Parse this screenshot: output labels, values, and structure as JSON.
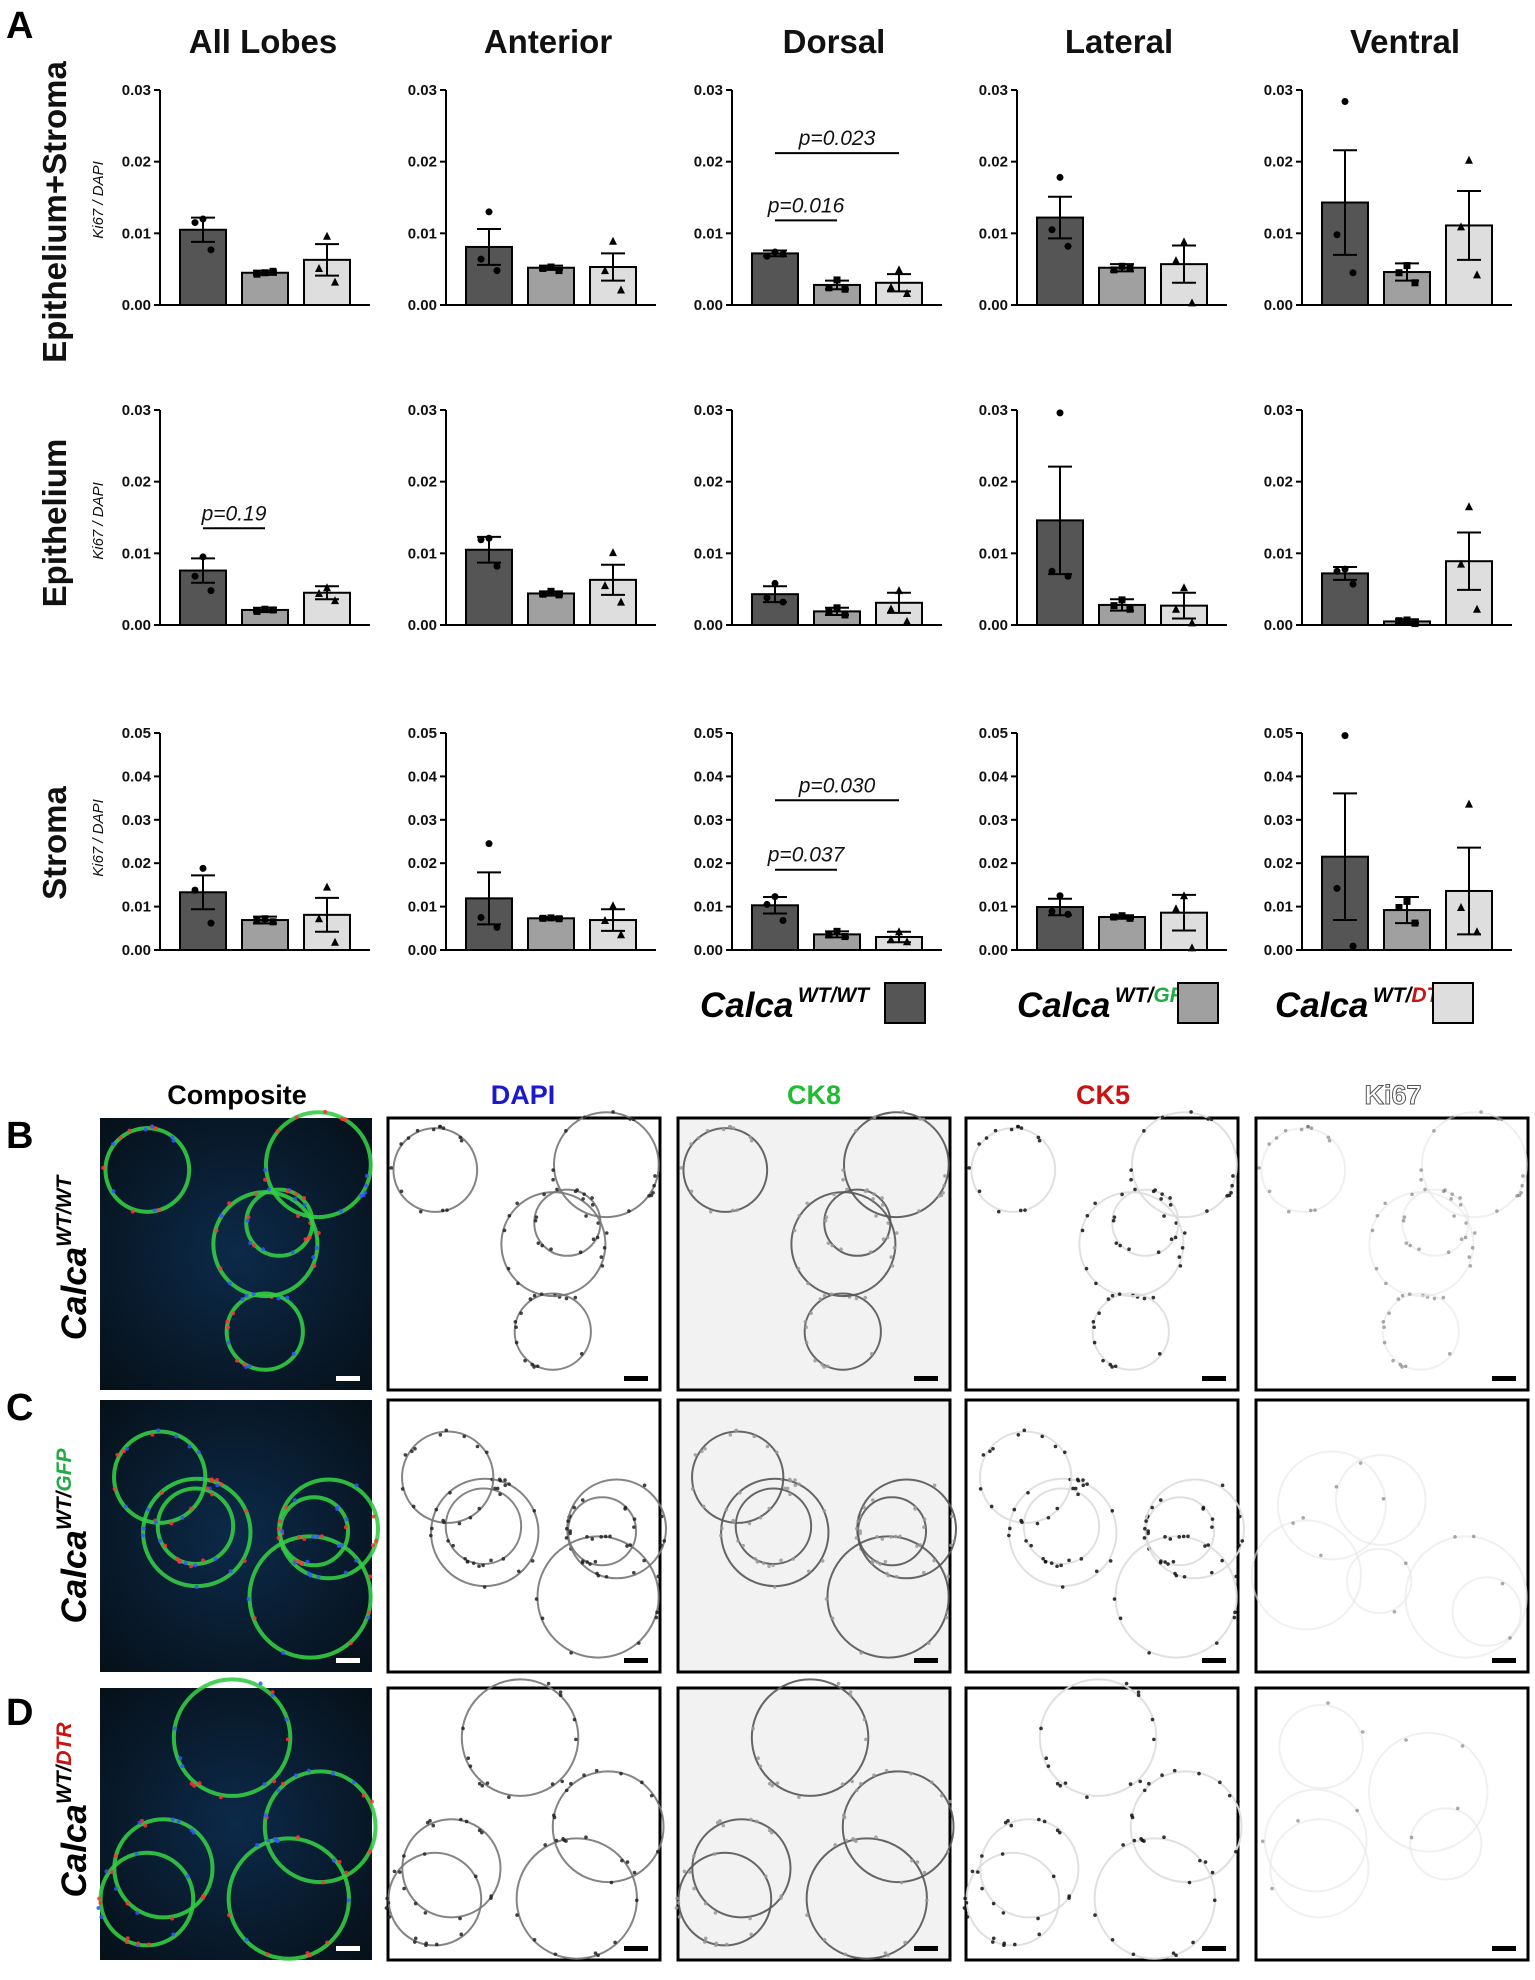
{
  "panel_labels": {
    "A": "A",
    "B": "B",
    "C": "C",
    "D": "D"
  },
  "columns": [
    "All Lobes",
    "Anterior",
    "Dorsal",
    "Lateral",
    "Ventral"
  ],
  "rows": [
    "Epithelium+Stroma",
    "Epithelium",
    "Stroma"
  ],
  "y_axis_label": "Ki67 / DAPI",
  "colors": {
    "wt_wt": "#555555",
    "wt_gfp": "#a0a0a0",
    "wt_dtr": "#dedede",
    "gfp_text": "#22aa44",
    "dtr_text": "#cc1111",
    "dapi_text": "#1a1acc",
    "ck8_text": "#22bb33",
    "ck5_text": "#cc1111"
  },
  "legend": [
    {
      "base": "Calca",
      "sup_black": "WT/",
      "sup_colored": "WT",
      "sup_color": "#000000",
      "swatch": "#555555"
    },
    {
      "base": "Calca",
      "sup_black": "WT/",
      "sup_colored": "GFP",
      "sup_color": "#22aa44",
      "swatch": "#a0a0a0"
    },
    {
      "base": "Calca",
      "sup_black": "WT/",
      "sup_colored": "DTR",
      "sup_color": "#cc1111",
      "swatch": "#dedede"
    }
  ],
  "chart_data": [
    {
      "type": "bar",
      "row": "Epithelium+Stroma",
      "column": "All Lobes",
      "categories": [
        "Calca WT/WT",
        "Calca WT/GFP",
        "Calca WT/DTR"
      ],
      "ylim": [
        0,
        0.03
      ],
      "yticks": [
        "0.00",
        "0.01",
        "0.02",
        "0.03"
      ],
      "values": [
        0.0105,
        0.0045,
        0.0063
      ],
      "sem": [
        0.0017,
        0.0003,
        0.0022
      ],
      "points": [
        [
          0.012,
          0.0115,
          0.0077
        ],
        [
          0.0045,
          0.0043,
          0.0047
        ],
        [
          0.0096,
          0.0051,
          0.0032
        ]
      ],
      "annotations": []
    },
    {
      "type": "bar",
      "row": "Epithelium+Stroma",
      "column": "Anterior",
      "categories": [
        "Calca WT/WT",
        "Calca WT/GFP",
        "Calca WT/DTR"
      ],
      "ylim": [
        0,
        0.03
      ],
      "yticks": [
        "0.00",
        "0.01",
        "0.02",
        "0.03"
      ],
      "values": [
        0.0081,
        0.0052,
        0.0053
      ],
      "sem": [
        0.0025,
        0.0003,
        0.0019
      ],
      "points": [
        [
          0.013,
          0.0064,
          0.0048
        ],
        [
          0.0053,
          0.0051,
          0.0048
        ],
        [
          0.0089,
          0.0048,
          0.0021
        ]
      ],
      "annotations": []
    },
    {
      "type": "bar",
      "row": "Epithelium+Stroma",
      "column": "Dorsal",
      "categories": [
        "Calca WT/WT",
        "Calca WT/GFP",
        "Calca WT/DTR"
      ],
      "ylim": [
        0,
        0.03
      ],
      "yticks": [
        "0.00",
        "0.01",
        "0.02",
        "0.03"
      ],
      "values": [
        0.0072,
        0.0028,
        0.0031
      ],
      "sem": [
        0.0004,
        0.0006,
        0.0012
      ],
      "points": [
        [
          0.0074,
          0.0068,
          0.0071
        ],
        [
          0.0035,
          0.0024,
          0.0022
        ],
        [
          0.0049,
          0.0025,
          0.0016
        ]
      ],
      "annotations": [
        {
          "label": "p=0.016",
          "from": 0,
          "to": 1,
          "y": 0.0118
        },
        {
          "label": "p=0.023",
          "from": 0,
          "to": 2,
          "y": 0.0212
        }
      ]
    },
    {
      "type": "bar",
      "row": "Epithelium+Stroma",
      "column": "Lateral",
      "categories": [
        "Calca WT/WT",
        "Calca WT/GFP",
        "Calca WT/DTR"
      ],
      "ylim": [
        0,
        0.03
      ],
      "yticks": [
        "0.00",
        "0.01",
        "0.02",
        "0.03"
      ],
      "values": [
        0.0122,
        0.0052,
        0.0057
      ],
      "sem": [
        0.0029,
        0.0005,
        0.0026
      ],
      "points": [
        [
          0.0178,
          0.0105,
          0.0082
        ],
        [
          0.0054,
          0.0049,
          0.0052
        ],
        [
          0.0088,
          0.0062,
          0.0003
        ]
      ],
      "annotations": []
    },
    {
      "type": "bar",
      "row": "Epithelium+Stroma",
      "column": "Ventral",
      "categories": [
        "Calca WT/WT",
        "Calca WT/GFP",
        "Calca WT/DTR"
      ],
      "ylim": [
        0,
        0.03
      ],
      "yticks": [
        "0.00",
        "0.01",
        "0.02",
        "0.03"
      ],
      "values": [
        0.0143,
        0.0046,
        0.0111
      ],
      "sem": [
        0.0073,
        0.0012,
        0.0048
      ],
      "points": [
        [
          0.0284,
          0.0098,
          0.0045
        ],
        [
          0.0055,
          0.0045,
          0.0031
        ],
        [
          0.0202,
          0.0109,
          0.0042
        ]
      ],
      "annotations": []
    },
    {
      "type": "bar",
      "row": "Epithelium",
      "column": "All Lobes",
      "categories": [
        "Calca WT/WT",
        "Calca WT/GFP",
        "Calca WT/DTR"
      ],
      "ylim": [
        0,
        0.03
      ],
      "yticks": [
        "0.00",
        "0.01",
        "0.02",
        "0.03"
      ],
      "values": [
        0.0076,
        0.0021,
        0.0045
      ],
      "sem": [
        0.0017,
        0.0003,
        0.0009
      ],
      "points": [
        [
          0.0095,
          0.0068,
          0.0048
        ],
        [
          0.0022,
          0.0019,
          0.0021
        ],
        [
          0.0052,
          0.0044,
          0.0034
        ]
      ],
      "annotations": [
        {
          "label": "p=0.19",
          "from": 0,
          "to": 1,
          "y": 0.0135
        }
      ]
    },
    {
      "type": "bar",
      "row": "Epithelium",
      "column": "Anterior",
      "categories": [
        "Calca WT/WT",
        "Calca WT/GFP",
        "Calca WT/DTR"
      ],
      "ylim": [
        0,
        0.03
      ],
      "yticks": [
        "0.00",
        "0.01",
        "0.02",
        "0.03"
      ],
      "values": [
        0.0105,
        0.0044,
        0.0063
      ],
      "sem": [
        0.0018,
        0.0003,
        0.0021
      ],
      "points": [
        [
          0.0121,
          0.0119,
          0.0082
        ],
        [
          0.0047,
          0.0043,
          0.0042
        ],
        [
          0.0101,
          0.0055,
          0.0032
        ]
      ],
      "annotations": []
    },
    {
      "type": "bar",
      "row": "Epithelium",
      "column": "Dorsal",
      "categories": [
        "Calca WT/WT",
        "Calca WT/GFP",
        "Calca WT/DTR"
      ],
      "ylim": [
        0,
        0.03
      ],
      "yticks": [
        "0.00",
        "0.01",
        "0.02",
        "0.03"
      ],
      "values": [
        0.0043,
        0.0019,
        0.0031
      ],
      "sem": [
        0.0011,
        0.0005,
        0.0014
      ],
      "points": [
        [
          0.0058,
          0.0038,
          0.0032
        ],
        [
          0.0024,
          0.0018,
          0.0014
        ],
        [
          0.0048,
          0.0022,
          0.0005
        ]
      ],
      "annotations": []
    },
    {
      "type": "bar",
      "row": "Epithelium",
      "column": "Lateral",
      "categories": [
        "Calca WT/WT",
        "Calca WT/GFP",
        "Calca WT/DTR"
      ],
      "ylim": [
        0,
        0.03
      ],
      "yticks": [
        "0.00",
        "0.01",
        "0.02",
        "0.03"
      ],
      "values": [
        0.0146,
        0.0028,
        0.0027
      ],
      "sem": [
        0.0075,
        0.0008,
        0.0018
      ],
      "points": [
        [
          0.0296,
          0.0075,
          0.0068
        ],
        [
          0.0035,
          0.0027,
          0.0022
        ],
        [
          0.0052,
          0.0022,
          0.0003
        ]
      ],
      "annotations": []
    },
    {
      "type": "bar",
      "row": "Epithelium",
      "column": "Ventral",
      "categories": [
        "Calca WT/WT",
        "Calca WT/GFP",
        "Calca WT/DTR"
      ],
      "ylim": [
        0,
        0.03
      ],
      "yticks": [
        "0.00",
        "0.01",
        "0.02",
        "0.03"
      ],
      "values": [
        0.0072,
        0.0005,
        0.0089
      ],
      "sem": [
        0.0009,
        0.0003,
        0.004
      ],
      "points": [
        [
          0.0078,
          0.0075,
          0.0057
        ],
        [
          0.0007,
          0.0006,
          0.0002
        ],
        [
          0.0165,
          0.0085,
          0.0022
        ]
      ],
      "annotations": []
    },
    {
      "type": "bar",
      "row": "Stroma",
      "column": "All Lobes",
      "categories": [
        "Calca WT/WT",
        "Calca WT/GFP",
        "Calca WT/DTR"
      ],
      "ylim": [
        0,
        0.05
      ],
      "yticks": [
        "0.00",
        "0.01",
        "0.02",
        "0.03",
        "0.04",
        "0.05"
      ],
      "values": [
        0.0133,
        0.0069,
        0.0081
      ],
      "sem": [
        0.0039,
        0.0008,
        0.0039
      ],
      "points": [
        [
          0.0188,
          0.0138,
          0.0062
        ],
        [
          0.0072,
          0.0068,
          0.0065
        ],
        [
          0.0145,
          0.0072,
          0.0018
        ]
      ],
      "annotations": []
    },
    {
      "type": "bar",
      "row": "Stroma",
      "column": "Anterior",
      "categories": [
        "Calca WT/WT",
        "Calca WT/GFP",
        "Calca WT/DTR"
      ],
      "ylim": [
        0,
        0.05
      ],
      "yticks": [
        "0.00",
        "0.01",
        "0.02",
        "0.03",
        "0.04",
        "0.05"
      ],
      "values": [
        0.0119,
        0.0073,
        0.0069
      ],
      "sem": [
        0.006,
        0.0003,
        0.0025
      ],
      "points": [
        [
          0.0245,
          0.0075,
          0.0052
        ],
        [
          0.0074,
          0.0073,
          0.0072
        ],
        [
          0.0102,
          0.0068,
          0.0035
        ]
      ],
      "annotations": []
    },
    {
      "type": "bar",
      "row": "Stroma",
      "column": "Dorsal",
      "categories": [
        "Calca WT/WT",
        "Calca WT/GFP",
        "Calca WT/DTR"
      ],
      "ylim": [
        0,
        0.05
      ],
      "yticks": [
        "0.00",
        "0.01",
        "0.02",
        "0.03",
        "0.04",
        "0.05"
      ],
      "values": [
        0.0103,
        0.0036,
        0.003
      ],
      "sem": [
        0.0019,
        0.0007,
        0.0012
      ],
      "points": [
        [
          0.0123,
          0.0105,
          0.0068
        ],
        [
          0.0043,
          0.0035,
          0.0031
        ],
        [
          0.0042,
          0.0024,
          0.0019
        ]
      ],
      "annotations": [
        {
          "label": "p=0.037",
          "from": 0,
          "to": 1,
          "y": 0.0185
        },
        {
          "label": "p=0.030",
          "from": 0,
          "to": 2,
          "y": 0.0345
        }
      ]
    },
    {
      "type": "bar",
      "row": "Stroma",
      "column": "Lateral",
      "categories": [
        "Calca WT/WT",
        "Calca WT/GFP",
        "Calca WT/DTR"
      ],
      "ylim": [
        0,
        0.05
      ],
      "yticks": [
        "0.00",
        "0.01",
        "0.02",
        "0.03",
        "0.04",
        "0.05"
      ],
      "values": [
        0.0099,
        0.0076,
        0.0086
      ],
      "sem": [
        0.0019,
        0.0004,
        0.0041
      ],
      "points": [
        [
          0.0125,
          0.0089,
          0.0082
        ],
        [
          0.0079,
          0.0076,
          0.0073
        ],
        [
          0.0125,
          0.0095,
          0.0005
        ]
      ],
      "annotations": []
    },
    {
      "type": "bar",
      "row": "Stroma",
      "column": "Ventral",
      "categories": [
        "Calca WT/WT",
        "Calca WT/GFP",
        "Calca WT/DTR"
      ],
      "ylim": [
        0,
        0.05
      ],
      "yticks": [
        "0.00",
        "0.01",
        "0.02",
        "0.03",
        "0.04",
        "0.05"
      ],
      "values": [
        0.0215,
        0.0092,
        0.0136
      ],
      "sem": [
        0.0146,
        0.003,
        0.01
      ],
      "points": [
        [
          0.0494,
          0.0142,
          0.0009
        ],
        [
          0.0112,
          0.0098,
          0.0062
        ],
        [
          0.0336,
          0.0098,
          0.0042
        ]
      ],
      "annotations": []
    }
  ],
  "image_panel": {
    "column_titles": [
      {
        "text": "Composite",
        "color": "#000000"
      },
      {
        "text": "DAPI",
        "color": "#1a1acc"
      },
      {
        "text": "CK8",
        "color": "#22bb33"
      },
      {
        "text": "CK5",
        "color": "#cc1111"
      },
      {
        "text": "Ki67",
        "color": "#ffffff"
      }
    ],
    "rows": [
      {
        "letter": "B",
        "base": "Calca",
        "sup_black": "WT/",
        "sup_colored": "WT",
        "sup_color": "#000000"
      },
      {
        "letter": "C",
        "base": "Calca",
        "sup_black": "WT/",
        "sup_colored": "GFP",
        "sup_color": "#22aa44"
      },
      {
        "letter": "D",
        "base": "Calca",
        "sup_black": "WT/",
        "sup_colored": "DTR",
        "sup_color": "#cc1111"
      }
    ]
  }
}
